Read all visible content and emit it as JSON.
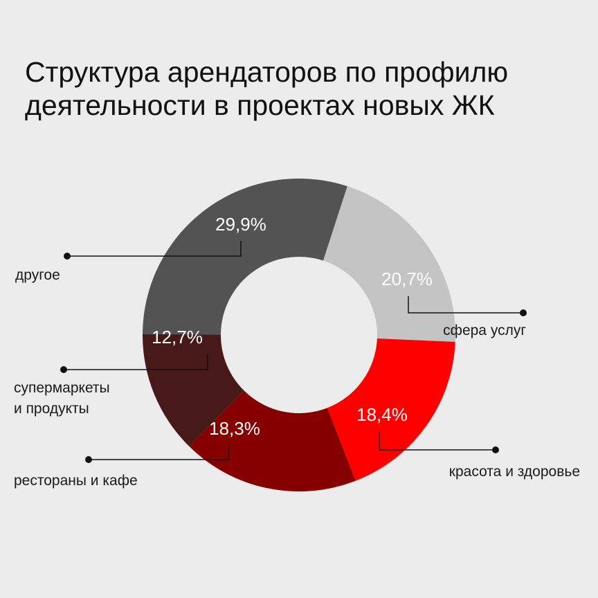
{
  "title_lines": [
    "Структура арендаторов по профилю",
    "деятельности в проектах новых ЖК"
  ],
  "chart_data": {
    "type": "pie",
    "variant": "donut",
    "title": "Структура арендаторов по профилю деятельности в проектах новых ЖК",
    "unit": "%",
    "slices": [
      {
        "category": "сфера услуг",
        "value": 20.7,
        "label": "20,7%",
        "color": "#c4c4c4"
      },
      {
        "category": "красота и здоровье",
        "value": 18.4,
        "label": "18,4%",
        "color": "#fe0000"
      },
      {
        "category": "рестораны и кафе",
        "value": 18.3,
        "label": "18,3%",
        "color": "#870000"
      },
      {
        "category": "супермаркеты\nи продукты",
        "value": 12.7,
        "label": "12,7%",
        "color": "#471a19"
      },
      {
        "category": "другое",
        "value": 29.9,
        "label": "29,9%",
        "color": "#535353"
      }
    ]
  }
}
